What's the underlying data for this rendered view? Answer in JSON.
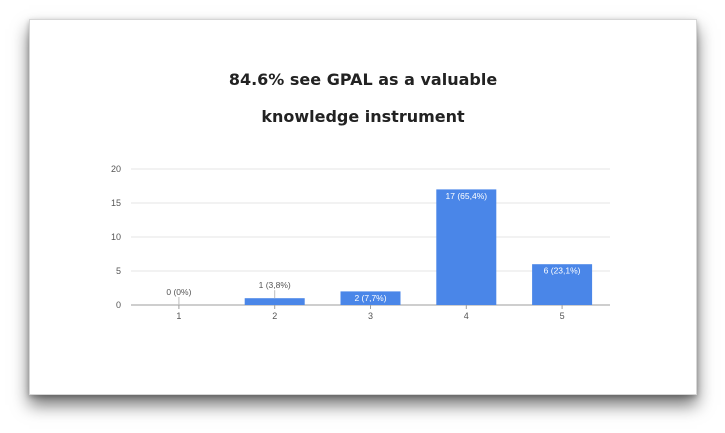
{
  "slide": {
    "title_line1": "84.6% see GPAL as a valuable",
    "title_line2": "knowledge instrument"
  },
  "chart_data": {
    "type": "bar",
    "title": "84.6% see GPAL as a valuable knowledge instrument",
    "categories": [
      "1",
      "2",
      "3",
      "4",
      "5"
    ],
    "values": [
      0,
      1,
      2,
      17,
      6
    ],
    "data_labels": [
      "0 (0%)",
      "1 (3,8%)",
      "2 (7,7%)",
      "17 (65,4%)",
      "6 (23,1%)"
    ],
    "yticks": [
      "0",
      "5",
      "10",
      "15",
      "20"
    ],
    "ylim": [
      0,
      20
    ],
    "grid": true,
    "bar_color": "#4a86e8"
  }
}
